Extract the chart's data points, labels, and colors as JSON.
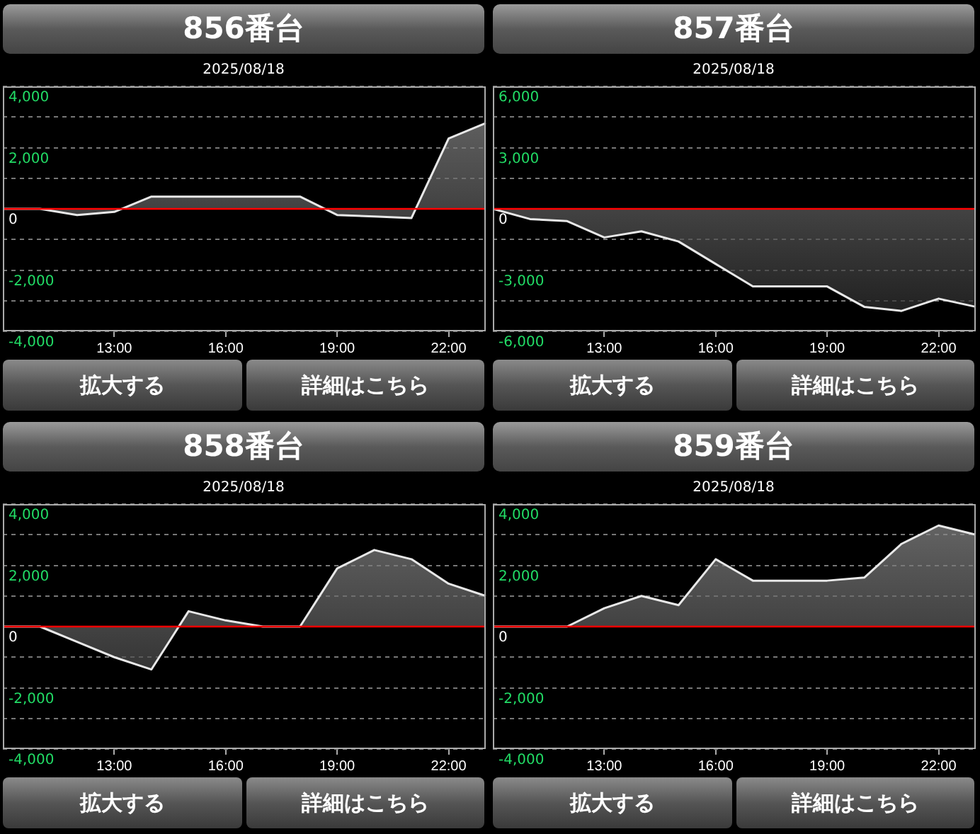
{
  "chart_data": [
    {
      "type": "area",
      "title": "856番台",
      "subtitle": "2025/08/18",
      "x": [
        10,
        11,
        12,
        13,
        14,
        15,
        16,
        17,
        18,
        19,
        20,
        21,
        22,
        23
      ],
      "series": [
        {
          "color": "#e8e8e8",
          "values": [
            0,
            0,
            -200,
            -100,
            400,
            400,
            400,
            400,
            400,
            -200,
            -250,
            -300,
            2300,
            2800
          ]
        }
      ],
      "xlim": [
        10,
        23
      ],
      "xticks": [
        {
          "value": 13,
          "label": "13:00"
        },
        {
          "value": 16,
          "label": "16:00"
        },
        {
          "value": 19,
          "label": "19:00"
        },
        {
          "value": 22,
          "label": "22:00"
        }
      ],
      "ylim": [
        -4000,
        4000
      ],
      "yticks": [
        {
          "value": -4000,
          "label": "-4,000"
        },
        {
          "value": -3000,
          "label": null
        },
        {
          "value": -2000,
          "label": "-2,000"
        },
        {
          "value": -1000,
          "label": null
        },
        {
          "value": 0,
          "label": "0"
        },
        {
          "value": 1000,
          "label": null
        },
        {
          "value": 2000,
          "label": "2,000"
        },
        {
          "value": 3000,
          "label": null
        },
        {
          "value": 4000,
          "label": "4,000"
        }
      ],
      "ref_lines": [
        {
          "axis": "y",
          "value": 0,
          "color": "#ff0000"
        }
      ],
      "grid": "y",
      "marker": "none",
      "annotations": [
        "拡大する",
        "詳細はこちら"
      ]
    },
    {
      "type": "area",
      "title": "857番台",
      "subtitle": "2025/08/18",
      "x": [
        10,
        11,
        12,
        13,
        14,
        15,
        16,
        17,
        18,
        19,
        20,
        21,
        22,
        23
      ],
      "series": [
        {
          "color": "#e8e8e8",
          "values": [
            0,
            -500,
            -600,
            -1400,
            -1100,
            -1600,
            -2700,
            -3800,
            -3800,
            -3800,
            -4800,
            -5000,
            -4400,
            -4800
          ]
        }
      ],
      "xlim": [
        10,
        23
      ],
      "xticks": [
        {
          "value": 13,
          "label": "13:00"
        },
        {
          "value": 16,
          "label": "16:00"
        },
        {
          "value": 19,
          "label": "19:00"
        },
        {
          "value": 22,
          "label": "22:00"
        }
      ],
      "ylim": [
        -6000,
        6000
      ],
      "yticks": [
        {
          "value": -6000,
          "label": "-6,000"
        },
        {
          "value": -4500,
          "label": null
        },
        {
          "value": -3000,
          "label": "-3,000"
        },
        {
          "value": -1500,
          "label": null
        },
        {
          "value": 0,
          "label": "0"
        },
        {
          "value": 1500,
          "label": null
        },
        {
          "value": 3000,
          "label": "3,000"
        },
        {
          "value": 4500,
          "label": null
        },
        {
          "value": 6000,
          "label": "6,000"
        }
      ],
      "ref_lines": [
        {
          "axis": "y",
          "value": 0,
          "color": "#ff0000"
        }
      ],
      "grid": "y",
      "marker": "none",
      "annotations": [
        "拡大する",
        "詳細はこちら"
      ]
    },
    {
      "type": "area",
      "title": "858番台",
      "subtitle": "2025/08/18",
      "x": [
        10,
        11,
        12,
        13,
        14,
        15,
        16,
        17,
        18,
        19,
        20,
        21,
        22,
        23
      ],
      "series": [
        {
          "color": "#e8e8e8",
          "values": [
            0,
            0,
            -500,
            -1000,
            -1400,
            500,
            200,
            0,
            0,
            1900,
            2500,
            2200,
            1400,
            1000
          ]
        }
      ],
      "xlim": [
        10,
        23
      ],
      "xticks": [
        {
          "value": 13,
          "label": "13:00"
        },
        {
          "value": 16,
          "label": "16:00"
        },
        {
          "value": 19,
          "label": "19:00"
        },
        {
          "value": 22,
          "label": "22:00"
        }
      ],
      "ylim": [
        -4000,
        4000
      ],
      "yticks": [
        {
          "value": -4000,
          "label": "-4,000"
        },
        {
          "value": -3000,
          "label": null
        },
        {
          "value": -2000,
          "label": "-2,000"
        },
        {
          "value": -1000,
          "label": null
        },
        {
          "value": 0,
          "label": "0"
        },
        {
          "value": 1000,
          "label": null
        },
        {
          "value": 2000,
          "label": "2,000"
        },
        {
          "value": 3000,
          "label": null
        },
        {
          "value": 4000,
          "label": "4,000"
        }
      ],
      "ref_lines": [
        {
          "axis": "y",
          "value": 0,
          "color": "#ff0000"
        }
      ],
      "grid": "y",
      "marker": "none",
      "annotations": [
        "拡大する",
        "詳細はこちら"
      ]
    },
    {
      "type": "area",
      "title": "859番台",
      "subtitle": "2025/08/18",
      "x": [
        10,
        11,
        12,
        13,
        14,
        15,
        16,
        17,
        18,
        19,
        20,
        21,
        22,
        23
      ],
      "series": [
        {
          "color": "#e8e8e8",
          "values": [
            0,
            0,
            0,
            600,
            1000,
            700,
            2200,
            1500,
            1500,
            1500,
            1600,
            2700,
            3300,
            3000
          ]
        }
      ],
      "xlim": [
        10,
        23
      ],
      "xticks": [
        {
          "value": 13,
          "label": "13:00"
        },
        {
          "value": 16,
          "label": "16:00"
        },
        {
          "value": 19,
          "label": "19:00"
        },
        {
          "value": 22,
          "label": "22:00"
        }
      ],
      "ylim": [
        -4000,
        4000
      ],
      "yticks": [
        {
          "value": -4000,
          "label": "-4,000"
        },
        {
          "value": -3000,
          "label": null
        },
        {
          "value": -2000,
          "label": "-2,000"
        },
        {
          "value": -1000,
          "label": null
        },
        {
          "value": 0,
          "label": "0"
        },
        {
          "value": 1000,
          "label": null
        },
        {
          "value": 2000,
          "label": "2,000"
        },
        {
          "value": 3000,
          "label": null
        },
        {
          "value": 4000,
          "label": "4,000"
        }
      ],
      "ref_lines": [
        {
          "axis": "y",
          "value": 0,
          "color": "#ff0000"
        }
      ],
      "grid": "y",
      "marker": "none",
      "annotations": [
        "拡大する",
        "詳細はこちら"
      ]
    }
  ]
}
